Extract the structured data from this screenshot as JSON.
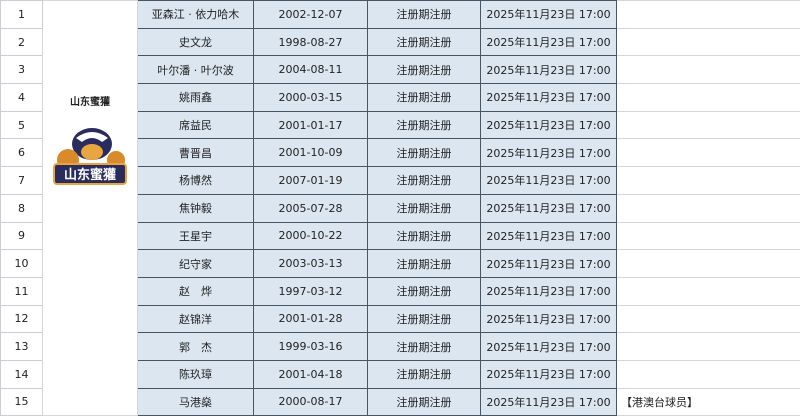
{
  "team": {
    "name": "山东蜜獾",
    "logo_text": "山东蜜獾"
  },
  "rows": [
    {
      "no": "1",
      "name": "亚森江 · 依力哈木",
      "birth": "2002-12-07",
      "type": "注册期注册",
      "time": "2025年11月23日 17:00",
      "note": ""
    },
    {
      "no": "2",
      "name": "史文龙",
      "birth": "1998-08-27",
      "type": "注册期注册",
      "time": "2025年11月23日 17:00",
      "note": ""
    },
    {
      "no": "3",
      "name": "叶尔潘 · 叶尔波",
      "birth": "2004-08-11",
      "type": "注册期注册",
      "time": "2025年11月23日 17:00",
      "note": ""
    },
    {
      "no": "4",
      "name": "姚雨鑫",
      "birth": "2000-03-15",
      "type": "注册期注册",
      "time": "2025年11月23日 17:00",
      "note": ""
    },
    {
      "no": "5",
      "name": "席益民",
      "birth": "2001-01-17",
      "type": "注册期注册",
      "time": "2025年11月23日 17:00",
      "note": ""
    },
    {
      "no": "6",
      "name": "曹晋昌",
      "birth": "2001-10-09",
      "type": "注册期注册",
      "time": "2025年11月23日 17:00",
      "note": ""
    },
    {
      "no": "7",
      "name": "杨博然",
      "birth": "2007-01-19",
      "type": "注册期注册",
      "time": "2025年11月23日 17:00",
      "note": ""
    },
    {
      "no": "8",
      "name": "焦钟毅",
      "birth": "2005-07-28",
      "type": "注册期注册",
      "time": "2025年11月23日 17:00",
      "note": ""
    },
    {
      "no": "9",
      "name": "王星宇",
      "birth": "2000-10-22",
      "type": "注册期注册",
      "time": "2025年11月23日 17:00",
      "note": ""
    },
    {
      "no": "10",
      "name": "纪守家",
      "birth": "2003-03-13",
      "type": "注册期注册",
      "time": "2025年11月23日 17:00",
      "note": ""
    },
    {
      "no": "11",
      "name": "赵　烨",
      "birth": "1997-03-12",
      "type": "注册期注册",
      "time": "2025年11月23日 17:00",
      "note": ""
    },
    {
      "no": "12",
      "name": "赵锦洋",
      "birth": "2001-01-28",
      "type": "注册期注册",
      "time": "2025年11月23日 17:00",
      "note": ""
    },
    {
      "no": "13",
      "name": "郭　杰",
      "birth": "1999-03-16",
      "type": "注册期注册",
      "time": "2025年11月23日 17:00",
      "note": ""
    },
    {
      "no": "14",
      "name": "陈玖璋",
      "birth": "2001-04-18",
      "type": "注册期注册",
      "time": "2025年11月23日 17:00",
      "note": ""
    },
    {
      "no": "15",
      "name": "马港燊",
      "birth": "2000-08-17",
      "type": "注册期注册",
      "time": "2025年11月23日 17:00",
      "note": "【港澳台球员】"
    }
  ]
}
